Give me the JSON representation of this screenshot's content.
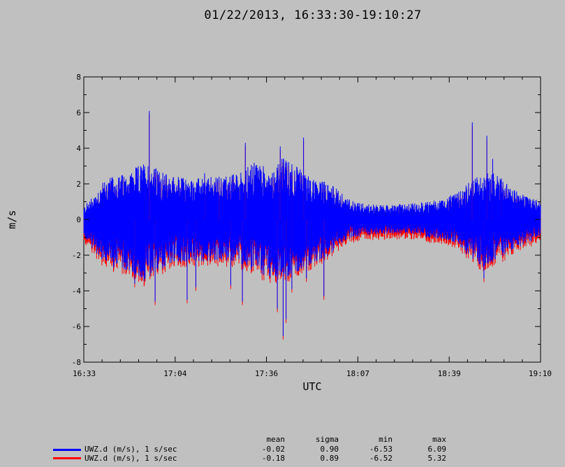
{
  "title": "01/22/2013, 16:33:30-19:10:27",
  "chart_data": {
    "type": "line",
    "xlabel": "UTC",
    "ylabel": "m/s",
    "x_range": [
      "16:33",
      "19:10"
    ],
    "xlim_minutes": [
      993.5,
      1150.45
    ],
    "ylim": [
      -8,
      8
    ],
    "x_ticks": [
      "16:33",
      "17:04",
      "17:36",
      "18:07",
      "18:39",
      "19:10"
    ],
    "y_ticks": [
      "8",
      "6",
      "4",
      "2",
      "0",
      "-2",
      "-4",
      "-6",
      "-8"
    ],
    "grid": false,
    "legend_position": "bottom-left",
    "series": [
      {
        "name": "UWZ.d (m/s), 1 s/sec",
        "color": "#0000ff",
        "stats": {
          "mean": "-0.02",
          "sigma": "0.90",
          "min": "-6.53",
          "max": "6.09"
        },
        "mean": -0.02,
        "sigma": 0.9,
        "min": -6.53,
        "max": 6.09,
        "envelope": {
          "times": [
            "16:33",
            "16:41",
            "16:48",
            "16:55",
            "17:00",
            "17:04",
            "17:10",
            "17:18",
            "17:26",
            "17:33",
            "17:38",
            "17:42",
            "17:46",
            "17:52",
            "17:58",
            "18:04",
            "18:10",
            "18:18",
            "18:25",
            "18:31",
            "18:37",
            "18:42",
            "18:47",
            "18:52",
            "18:56",
            "19:00",
            "19:05",
            "19:10"
          ],
          "upper": [
            0.6,
            2.3,
            2.6,
            3.3,
            2.7,
            2.5,
            2.3,
            2.4,
            2.6,
            3.3,
            2.8,
            3.5,
            3.1,
            2.3,
            2.1,
            1.2,
            0.9,
            0.8,
            0.9,
            1.0,
            1.2,
            1.5,
            2.3,
            2.7,
            2.6,
            1.8,
            1.4,
            1.1
          ],
          "lower": [
            -0.9,
            -2.6,
            -2.9,
            -3.6,
            -2.8,
            -2.5,
            -2.4,
            -2.3,
            -2.4,
            -3.0,
            -3.3,
            -3.4,
            -3.0,
            -2.5,
            -2.0,
            -1.1,
            -0.9,
            -0.8,
            -0.8,
            -1.0,
            -1.1,
            -1.5,
            -2.4,
            -2.7,
            -2.2,
            -1.8,
            -1.4,
            -1.0
          ]
        },
        "spikes": [
          {
            "t": "16:56",
            "v": 6.09
          },
          {
            "t": "16:58",
            "v": -4.6
          },
          {
            "t": "16:51",
            "v": -3.6
          },
          {
            "t": "17:09",
            "v": -4.5
          },
          {
            "t": "17:12",
            "v": -3.8
          },
          {
            "t": "17:15",
            "v": 2.6
          },
          {
            "t": "17:29",
            "v": 4.3
          },
          {
            "t": "17:28",
            "v": -4.6
          },
          {
            "t": "17:24",
            "v": -3.7
          },
          {
            "t": "17:41",
            "v": 4.1
          },
          {
            "t": "17:42",
            "v": -6.53
          },
          {
            "t": "17:40",
            "v": -5.0
          },
          {
            "t": "17:43",
            "v": -5.6
          },
          {
            "t": "17:45",
            "v": -3.9
          },
          {
            "t": "17:49",
            "v": 4.6
          },
          {
            "t": "17:50",
            "v": -3.3
          },
          {
            "t": "17:56",
            "v": -4.3
          },
          {
            "t": "17:45",
            "v": 3.1
          },
          {
            "t": "18:47",
            "v": 5.45
          },
          {
            "t": "18:52",
            "v": 4.7
          },
          {
            "t": "18:54",
            "v": 3.4
          },
          {
            "t": "18:51",
            "v": -3.3
          },
          {
            "t": "18:57",
            "v": 2.3
          },
          {
            "t": "17:20",
            "v": 2.4
          }
        ]
      },
      {
        "name": "UWZ.d (m/s), 1 s/sec",
        "color": "#ff0000",
        "stats": {
          "mean": "-0.18",
          "sigma": "0.89",
          "min": "-6.52",
          "max": "5.32"
        },
        "mean": -0.18,
        "sigma": 0.89,
        "min": -6.52,
        "max": 5.32
      }
    ]
  },
  "legend": {
    "headers": {
      "mean": "mean",
      "sigma": "sigma",
      "min": "min",
      "max": "max"
    }
  }
}
